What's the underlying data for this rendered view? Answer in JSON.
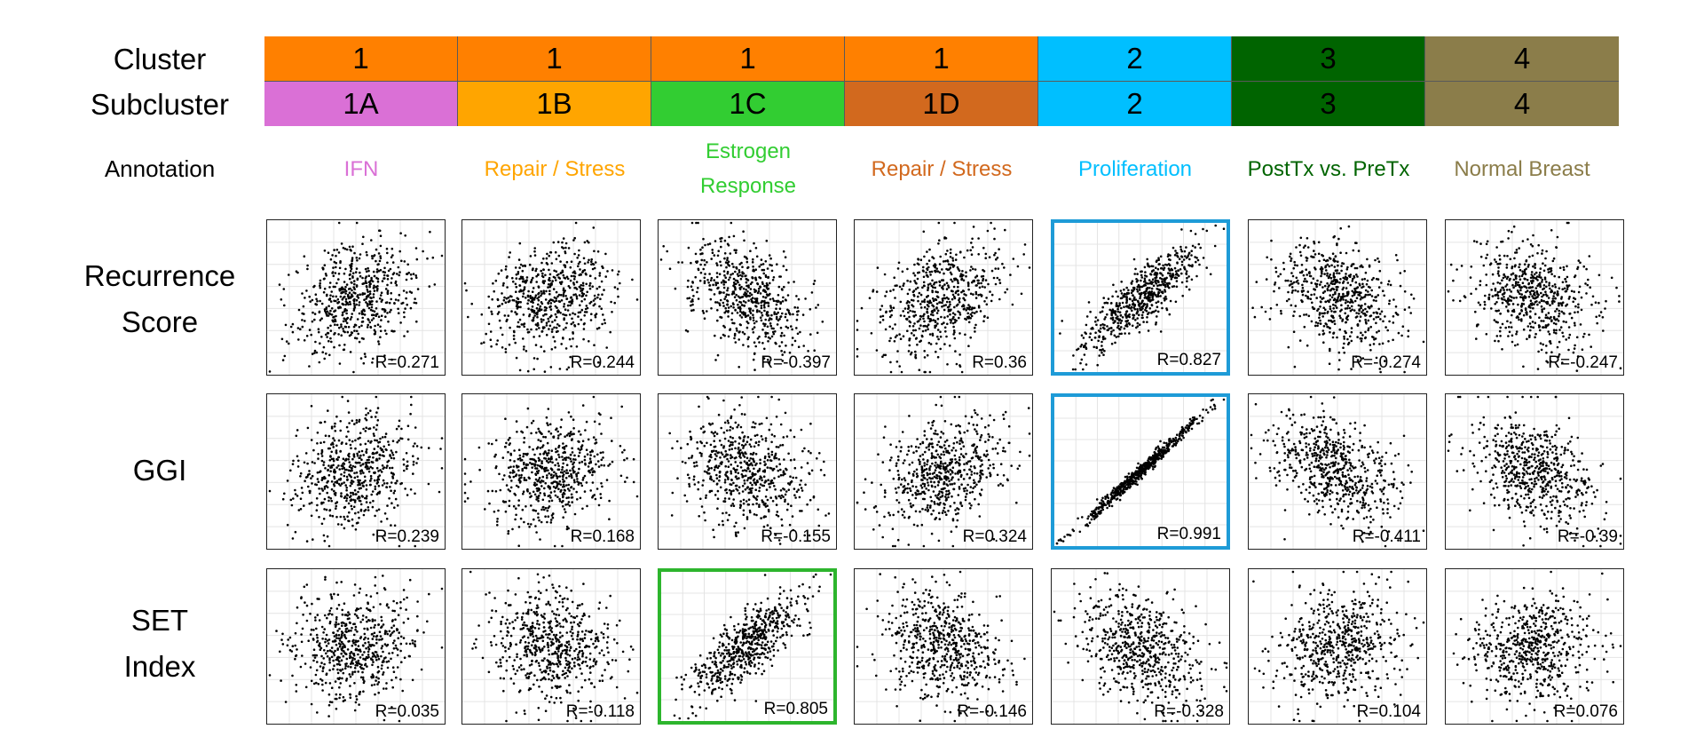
{
  "header": {
    "cluster_label": "Cluster",
    "subcluster_label": "Subcluster",
    "annotation_label": "Annotation"
  },
  "columns": [
    {
      "cluster": "1",
      "subcluster": "1A",
      "annotation": "IFN",
      "cluster_color": "#FF8000",
      "subcluster_color": "#DA70D6",
      "annotation_color": "#DA70D6"
    },
    {
      "cluster": "1",
      "subcluster": "1B",
      "annotation": "Repair / Stress",
      "cluster_color": "#FF8000",
      "subcluster_color": "#FFA500",
      "annotation_color": "#FFA500"
    },
    {
      "cluster": "1",
      "subcluster": "1C",
      "annotation": "Estrogen Response",
      "annotation_lines": [
        "Estrogen",
        "Response"
      ],
      "cluster_color": "#FF8000",
      "subcluster_color": "#32CD32",
      "annotation_color": "#32CD32"
    },
    {
      "cluster": "1",
      "subcluster": "1D",
      "annotation": "Repair / Stress",
      "cluster_color": "#FF8000",
      "subcluster_color": "#D2691E",
      "annotation_color": "#D2691E"
    },
    {
      "cluster": "2",
      "subcluster": "2",
      "annotation": "Proliferation",
      "cluster_color": "#00BFFF",
      "subcluster_color": "#00BFFF",
      "annotation_color": "#00BFFF"
    },
    {
      "cluster": "3",
      "subcluster": "3",
      "annotation": "PostTx vs. PreTx",
      "cluster_color": "#006400",
      "subcluster_color": "#006400",
      "annotation_color": "#006400"
    },
    {
      "cluster": "4",
      "subcluster": "4",
      "annotation": "Normal Breast",
      "cluster_color": "#8B7D4A",
      "subcluster_color": "#8B7D4A",
      "annotation_color": "#8B7D4A"
    }
  ],
  "rows": [
    {
      "label": "Recurrence Score",
      "label_lines": [
        "Recurrence",
        "Score"
      ]
    },
    {
      "label": "GGI",
      "label_lines": [
        "GGI"
      ]
    },
    {
      "label": "SET Index",
      "label_lines": [
        "SET",
        "Index"
      ]
    }
  ],
  "chart_data": {
    "type": "scatter",
    "title": "",
    "xlabel": "",
    "ylabel": "",
    "grid": true,
    "row_labels": [
      "Recurrence Score",
      "GGI",
      "SET Index"
    ],
    "column_labels": [
      "1A",
      "1B",
      "1C",
      "1D",
      "2",
      "3",
      "4"
    ],
    "correlations": [
      [
        "R=0.271",
        "R=0.244",
        "R=-0.397",
        "R=0.36",
        "R=0.827",
        "R=-0.274",
        "R=-0.247"
      ],
      [
        "R=0.239",
        "R=0.168",
        "R=-0.155",
        "R=0.324",
        "R=0.991",
        "R=-0.411",
        "R=-0.39"
      ],
      [
        "R=0.035",
        "R=-0.118",
        "R=0.805",
        "R=-0.146",
        "R=-0.328",
        "R=0.104",
        "R=0.076"
      ]
    ],
    "highlighted_panels": [
      {
        "row": 0,
        "col": 4,
        "color": "#1E9BD7"
      },
      {
        "row": 1,
        "col": 4,
        "color": "#1E9BD7"
      },
      {
        "row": 2,
        "col": 2,
        "color": "#2DB52D"
      }
    ]
  }
}
